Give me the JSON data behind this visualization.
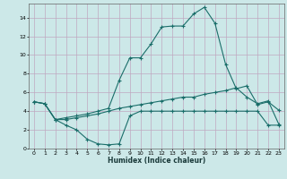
{
  "xlabel": "Humidex (Indice chaleur)",
  "bg_color": "#cce8e8",
  "line_color": "#1a6e6a",
  "grid_color_minor": "#b8d8d8",
  "grid_color_major": "#c0b0c0",
  "xlim": [
    -0.5,
    23.5
  ],
  "ylim": [
    0,
    15.5
  ],
  "yticks": [
    0,
    2,
    4,
    6,
    8,
    10,
    12,
    14
  ],
  "xticks": [
    0,
    1,
    2,
    3,
    4,
    5,
    6,
    7,
    8,
    9,
    10,
    11,
    12,
    13,
    14,
    15,
    16,
    17,
    18,
    19,
    20,
    21,
    22,
    23
  ],
  "line1_x": [
    0,
    1,
    2,
    3,
    4,
    5,
    6,
    7,
    8,
    9,
    10,
    11,
    12,
    13,
    14,
    15,
    16,
    17,
    18,
    19,
    20,
    21,
    22,
    23
  ],
  "line1_y": [
    5.0,
    4.8,
    3.1,
    3.3,
    3.5,
    3.7,
    4.0,
    4.3,
    7.3,
    9.7,
    9.7,
    11.2,
    13.0,
    13.1,
    13.1,
    14.4,
    15.1,
    13.4,
    9.0,
    6.4,
    6.7,
    4.7,
    5.0,
    4.1
  ],
  "line2_x": [
    0,
    1,
    2,
    3,
    4,
    5,
    6,
    7,
    8,
    9,
    10,
    11,
    12,
    13,
    14,
    15,
    16,
    17,
    18,
    19,
    20,
    21,
    22,
    23
  ],
  "line2_y": [
    5.0,
    4.8,
    3.1,
    2.5,
    2.0,
    1.0,
    0.5,
    0.4,
    0.5,
    3.5,
    4.0,
    4.0,
    4.0,
    4.0,
    4.0,
    4.0,
    4.0,
    4.0,
    4.0,
    4.0,
    4.0,
    4.0,
    2.5,
    2.5
  ],
  "line3_x": [
    0,
    1,
    2,
    3,
    4,
    5,
    6,
    7,
    8,
    9,
    10,
    11,
    12,
    13,
    14,
    15,
    16,
    17,
    18,
    19,
    20,
    21,
    22,
    23
  ],
  "line3_y": [
    5.0,
    4.8,
    3.1,
    3.1,
    3.3,
    3.5,
    3.7,
    4.0,
    4.3,
    4.5,
    4.7,
    4.9,
    5.1,
    5.3,
    5.5,
    5.5,
    5.8,
    6.0,
    6.2,
    6.5,
    5.5,
    4.8,
    5.1,
    2.6
  ]
}
